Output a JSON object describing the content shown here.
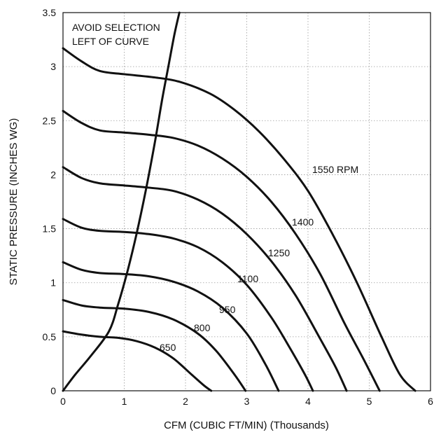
{
  "chart_data": {
    "type": "line",
    "xlabel": "CFM (CUBIC FT/MIN) (Thousands)",
    "ylabel": "STATIC PRESSURE (INCHES WG)",
    "xlim": [
      0,
      6
    ],
    "ylim": [
      0,
      3.5
    ],
    "x_ticks": [
      "0",
      "1",
      "2",
      "3",
      "4",
      "5",
      "6"
    ],
    "y_ticks": [
      "0",
      "0.5",
      "1",
      "1.5",
      "2",
      "2.5",
      "3",
      "3.5"
    ],
    "grid": true,
    "annotations": [
      "AVOID SELECTION",
      "LEFT OF CURVE"
    ],
    "series": [
      {
        "name": "1550 RPM",
        "label": "1550 RPM",
        "x": [
          0,
          0.3,
          0.6,
          1.0,
          1.5,
          1.9,
          2.4,
          2.8,
          3.2,
          3.6,
          4.0,
          4.4,
          4.8,
          5.2,
          5.5,
          5.75
        ],
        "y": [
          3.17,
          3.05,
          2.96,
          2.93,
          2.9,
          2.86,
          2.75,
          2.6,
          2.4,
          2.15,
          1.85,
          1.45,
          1.0,
          0.5,
          0.15,
          0
        ]
      },
      {
        "name": "1400",
        "label": "1400",
        "x": [
          0,
          0.3,
          0.6,
          1.0,
          1.4,
          1.8,
          2.2,
          2.6,
          3.0,
          3.4,
          3.8,
          4.2,
          4.6,
          4.9,
          5.17
        ],
        "y": [
          2.59,
          2.48,
          2.41,
          2.39,
          2.37,
          2.34,
          2.27,
          2.15,
          1.98,
          1.75,
          1.45,
          1.08,
          0.62,
          0.3,
          0
        ]
      },
      {
        "name": "1250",
        "label": "1250",
        "x": [
          0,
          0.3,
          0.6,
          1.0,
          1.4,
          1.8,
          2.2,
          2.6,
          3.0,
          3.4,
          3.8,
          4.2,
          4.45,
          4.63
        ],
        "y": [
          2.07,
          1.97,
          1.92,
          1.9,
          1.88,
          1.85,
          1.77,
          1.64,
          1.45,
          1.2,
          0.88,
          0.48,
          0.22,
          0
        ]
      },
      {
        "name": "1100",
        "label": "1100",
        "x": [
          0,
          0.3,
          0.6,
          1.0,
          1.4,
          1.8,
          2.2,
          2.6,
          3.0,
          3.4,
          3.7,
          3.95,
          4.08
        ],
        "y": [
          1.59,
          1.51,
          1.48,
          1.47,
          1.45,
          1.41,
          1.33,
          1.19,
          0.98,
          0.68,
          0.4,
          0.15,
          0
        ]
      },
      {
        "name": "950",
        "label": "950",
        "x": [
          0,
          0.3,
          0.6,
          1.0,
          1.4,
          1.8,
          2.2,
          2.6,
          3.0,
          3.3,
          3.52
        ],
        "y": [
          1.19,
          1.12,
          1.09,
          1.08,
          1.06,
          1.01,
          0.92,
          0.77,
          0.53,
          0.25,
          0
        ]
      },
      {
        "name": "800",
        "label": "800",
        "x": [
          0,
          0.3,
          0.6,
          1.0,
          1.4,
          1.8,
          2.2,
          2.5,
          2.8,
          2.98
        ],
        "y": [
          0.84,
          0.79,
          0.77,
          0.76,
          0.73,
          0.66,
          0.53,
          0.37,
          0.15,
          0
        ]
      },
      {
        "name": "650",
        "label": "650",
        "x": [
          0,
          0.3,
          0.6,
          0.9,
          1.2,
          1.5,
          1.8,
          2.1,
          2.3,
          2.42
        ],
        "y": [
          0.55,
          0.52,
          0.5,
          0.49,
          0.46,
          0.4,
          0.3,
          0.15,
          0.05,
          0
        ]
      },
      {
        "name": "selection limit",
        "x": [
          0,
          0.2,
          0.45,
          0.75,
          0.9,
          1.05,
          1.2,
          1.35,
          1.5,
          1.62,
          1.72,
          1.82,
          1.9
        ],
        "y": [
          0,
          0.15,
          0.32,
          0.55,
          0.8,
          1.1,
          1.45,
          1.85,
          2.3,
          2.7,
          3.0,
          3.3,
          3.5
        ]
      }
    ]
  }
}
